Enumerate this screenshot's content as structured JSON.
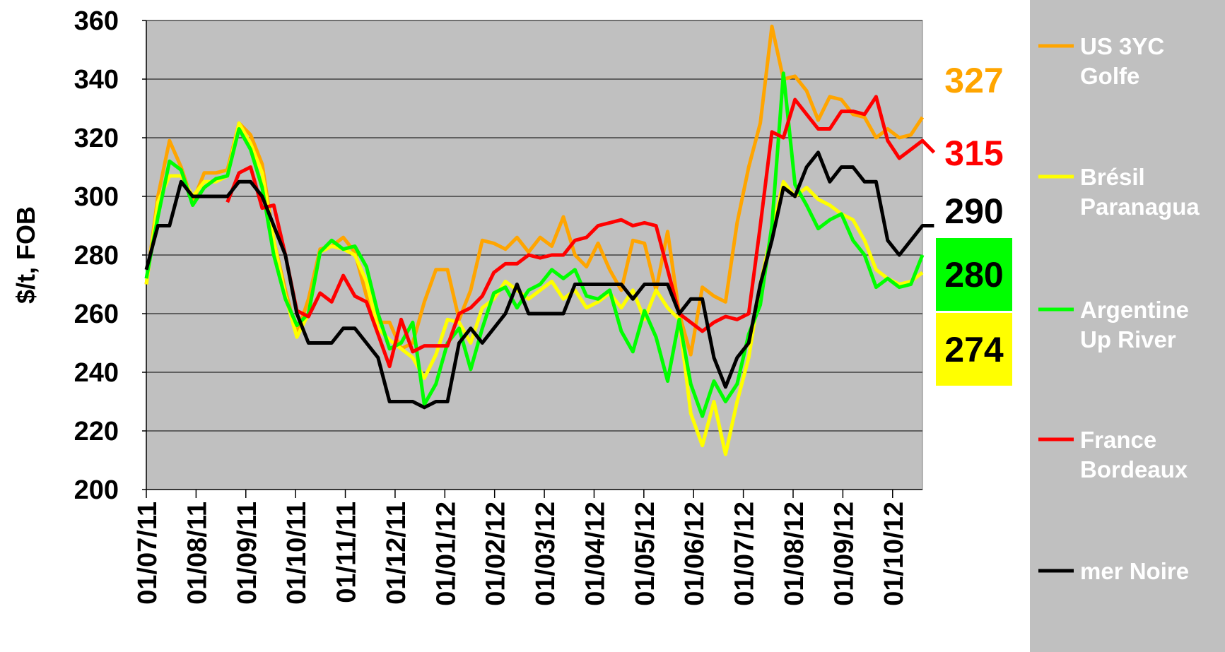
{
  "chart_data": {
    "type": "line",
    "ylabel": "$/t, FOB",
    "ylim": [
      200,
      360
    ],
    "yticks": [
      200,
      220,
      240,
      260,
      280,
      300,
      320,
      340,
      360
    ],
    "x_labels": [
      "01/07/11",
      "01/08/11",
      "01/09/11",
      "01/10/11",
      "01/11/11",
      "01/12/11",
      "01/01/12",
      "01/02/12",
      "01/03/12",
      "01/04/12",
      "01/05/12",
      "01/06/12",
      "01/07/12",
      "01/08/12",
      "01/09/12",
      "01/10/12"
    ],
    "grid": true,
    "legend": "right",
    "series": [
      {
        "name": "US 3YC Golfe",
        "legend_lines": [
          "US 3YC",
          "Golfe"
        ],
        "color": "#FFA500",
        "values": [
          270,
          300,
          319,
          310,
          298,
          308,
          308,
          309,
          325,
          321,
          311,
          285,
          268,
          253,
          265,
          282,
          283,
          286,
          281,
          266,
          257,
          257,
          248,
          250,
          264,
          275,
          275,
          258,
          268,
          285,
          284,
          282,
          286,
          281,
          286,
          283,
          293,
          280,
          276,
          284,
          275,
          268,
          285,
          284,
          268,
          288,
          260,
          246,
          269,
          266,
          264,
          291,
          310,
          325,
          358,
          340,
          341,
          336,
          326,
          334,
          333,
          328,
          327,
          320,
          323,
          320,
          321,
          327
        ],
        "end_label": "327"
      },
      {
        "name": "Brésil Paranagua",
        "legend_lines": [
          "Brésil",
          "Paranagua"
        ],
        "color": "#FFFF00",
        "values": [
          270,
          298,
          307,
          307,
          300,
          305,
          305,
          307,
          325,
          318,
          308,
          285,
          266,
          252,
          260,
          281,
          283,
          282,
          280,
          271,
          255,
          251,
          248,
          245,
          238,
          246,
          258,
          257,
          250,
          262,
          265,
          271,
          268,
          265,
          268,
          271,
          265,
          268,
          262,
          264,
          267,
          262,
          268,
          258,
          268,
          262,
          258,
          226,
          215,
          230,
          212,
          230,
          245,
          270,
          288,
          305,
          300,
          303,
          299,
          297,
          294,
          292,
          285,
          275,
          272,
          270,
          271,
          274
        ],
        "end_label": "274"
      },
      {
        "name": "Argentine Up River",
        "legend_lines": [
          "Argentine",
          "Up River"
        ],
        "color": "#00FF00",
        "values": [
          272,
          293,
          312,
          309,
          297,
          303,
          306,
          307,
          323,
          316,
          303,
          280,
          265,
          256,
          260,
          281,
          285,
          282,
          283,
          276,
          260,
          248,
          250,
          257,
          229,
          236,
          250,
          255,
          241,
          255,
          267,
          269,
          262,
          268,
          270,
          275,
          272,
          275,
          266,
          265,
          268,
          254,
          247,
          261,
          252,
          237,
          258,
          236,
          225,
          237,
          230,
          236,
          253,
          263,
          290,
          342,
          304,
          297,
          289,
          292,
          294,
          285,
          280,
          269,
          272,
          269,
          270,
          280
        ],
        "end_label": "280"
      },
      {
        "name": "France Bordeaux",
        "legend_lines": [
          "France",
          "Bordeaux"
        ],
        "color": "#FF0000",
        "values": [
          null,
          null,
          null,
          null,
          null,
          null,
          null,
          298,
          308,
          310,
          296,
          297,
          280,
          261,
          259,
          267,
          264,
          273,
          266,
          264,
          253,
          242,
          258,
          247,
          249,
          249,
          249,
          260,
          262,
          266,
          274,
          277,
          277,
          280,
          279,
          280,
          280,
          285,
          286,
          290,
          291,
          292,
          290,
          291,
          290,
          275,
          260,
          257,
          254,
          257,
          259,
          258,
          260,
          290,
          322,
          320,
          333,
          328,
          323,
          323,
          329,
          329,
          328,
          334,
          319,
          313,
          316,
          319,
          315
        ],
        "end_label": "315"
      },
      {
        "name": "mer Noire",
        "legend_lines": [
          "mer Noire"
        ],
        "color": "#000000",
        "values": [
          275,
          290,
          290,
          305,
          300,
          300,
          300,
          300,
          305,
          305,
          300,
          290,
          280,
          260,
          250,
          250,
          250,
          255,
          255,
          250,
          245,
          230,
          230,
          230,
          228,
          230,
          230,
          250,
          255,
          250,
          255,
          260,
          270,
          260,
          260,
          260,
          260,
          270,
          270,
          270,
          270,
          270,
          265,
          270,
          270,
          270,
          260,
          265,
          265,
          245,
          235,
          245,
          250,
          270,
          285,
          303,
          300,
          310,
          315,
          305,
          310,
          310,
          305,
          305,
          285,
          280,
          285,
          290,
          290
        ],
        "end_label": "290"
      }
    ],
    "end_labels": [
      {
        "text": "327",
        "color": "#FFA500",
        "bg": "none"
      },
      {
        "text": "315",
        "color": "#FF0000",
        "bg": "none"
      },
      {
        "text": "290",
        "color": "#000000",
        "bg": "none"
      },
      {
        "text": "280",
        "color": "#000000",
        "bg": "#00FF00"
      },
      {
        "text": "274",
        "color": "#000000",
        "bg": "#FFFF00"
      }
    ]
  }
}
